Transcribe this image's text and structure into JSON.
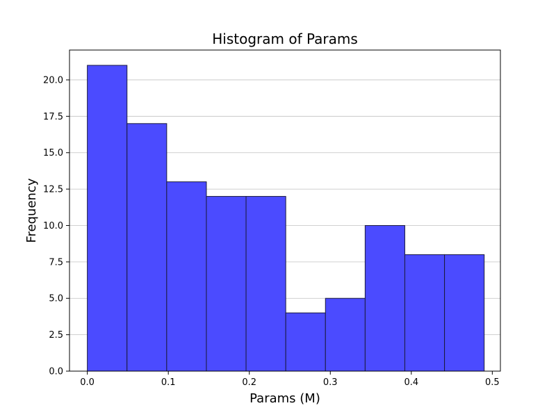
{
  "chart_data": {
    "type": "bar",
    "title": "Histogram of Params",
    "xlabel": "Params (M)",
    "ylabel": "Frequency",
    "xlim": [
      -0.022,
      0.51
    ],
    "ylim": [
      0,
      22.05
    ],
    "grid": "y",
    "bar_color": "#4b4bff",
    "edge_color": "#1a1a3c",
    "bins": [
      {
        "x0": 0.0,
        "x1": 0.049,
        "value": 21
      },
      {
        "x0": 0.049,
        "x1": 0.098,
        "value": 17
      },
      {
        "x0": 0.098,
        "x1": 0.147,
        "value": 13
      },
      {
        "x0": 0.147,
        "x1": 0.196,
        "value": 12
      },
      {
        "x0": 0.196,
        "x1": 0.245,
        "value": 12
      },
      {
        "x0": 0.245,
        "x1": 0.294,
        "value": 4
      },
      {
        "x0": 0.294,
        "x1": 0.343,
        "value": 5
      },
      {
        "x0": 0.343,
        "x1": 0.392,
        "value": 10
      },
      {
        "x0": 0.392,
        "x1": 0.441,
        "value": 8
      },
      {
        "x0": 0.441,
        "x1": 0.49,
        "value": 8
      }
    ],
    "x_ticks": [
      {
        "value": 0.0,
        "label": "0.0"
      },
      {
        "value": 0.1,
        "label": "0.1"
      },
      {
        "value": 0.2,
        "label": "0.2"
      },
      {
        "value": 0.3,
        "label": "0.3"
      },
      {
        "value": 0.4,
        "label": "0.4"
      },
      {
        "value": 0.5,
        "label": "0.5"
      }
    ],
    "y_ticks": [
      {
        "value": 0.0,
        "label": "0.0"
      },
      {
        "value": 2.5,
        "label": "2.5"
      },
      {
        "value": 5.0,
        "label": "5.0"
      },
      {
        "value": 7.5,
        "label": "7.5"
      },
      {
        "value": 10.0,
        "label": "10.0"
      },
      {
        "value": 12.5,
        "label": "12.5"
      },
      {
        "value": 15.0,
        "label": "15.0"
      },
      {
        "value": 17.5,
        "label": "17.5"
      },
      {
        "value": 20.0,
        "label": "20.0"
      }
    ]
  }
}
